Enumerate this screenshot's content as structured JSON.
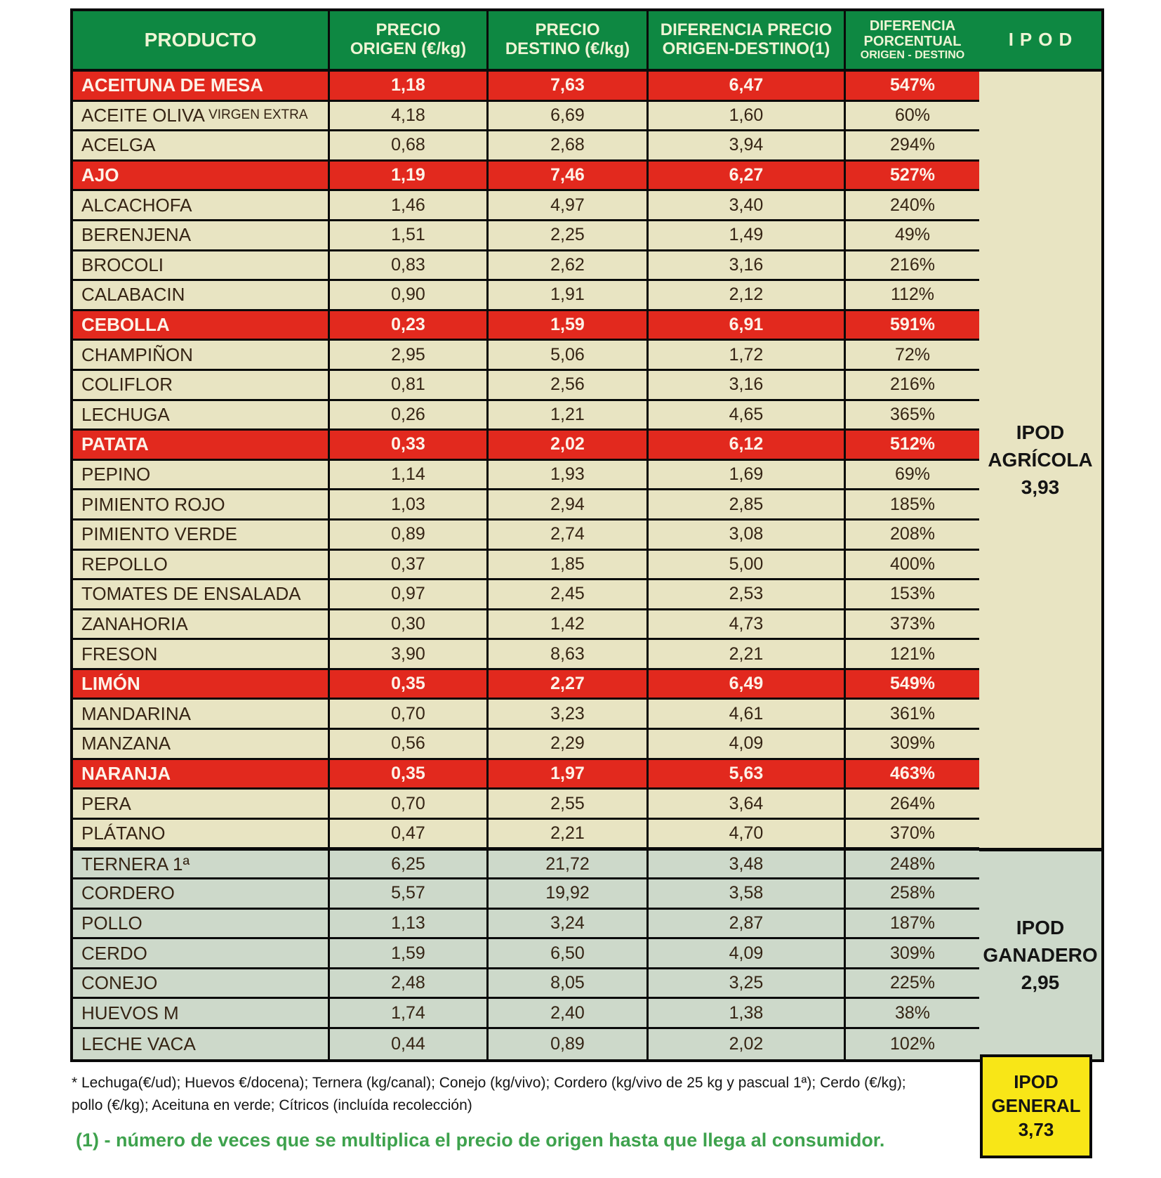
{
  "header": {
    "producto": "PRODUCTO",
    "precio_origen": [
      "PRECIO",
      "ORIGEN (€/kg)"
    ],
    "precio_destino": [
      "PRECIO",
      "DESTINO (€/kg)"
    ],
    "diferencia_precio": [
      "DIFERENCIA PRECIO",
      "ORIGEN-DESTINO(1)"
    ],
    "diferencia_porcentual": [
      "DIFERENCIA",
      "PORCENTUAL",
      "ORIGEN - DESTINO"
    ],
    "ipod": "IPOD"
  },
  "rows": [
    {
      "name": "ACEITUNA DE MESA",
      "origen": "1,18",
      "destino": "7,63",
      "diferencia": "6,47",
      "porcentaje": "547%",
      "highlight": true,
      "section": "agricola"
    },
    {
      "name": "ACEITE OLIVA",
      "name_small": "VIRGEN EXTRA",
      "origen": "4,18",
      "destino": "6,69",
      "diferencia": "1,60",
      "porcentaje": "60%",
      "highlight": false,
      "section": "agricola"
    },
    {
      "name": "ACELGA",
      "origen": "0,68",
      "destino": "2,68",
      "diferencia": "3,94",
      "porcentaje": "294%",
      "highlight": false,
      "section": "agricola"
    },
    {
      "name": "AJO",
      "origen": "1,19",
      "destino": "7,46",
      "diferencia": "6,27",
      "porcentaje": "527%",
      "highlight": true,
      "section": "agricola"
    },
    {
      "name": "ALCACHOFA",
      "origen": "1,46",
      "destino": "4,97",
      "diferencia": "3,40",
      "porcentaje": "240%",
      "highlight": false,
      "section": "agricola"
    },
    {
      "name": "BERENJENA",
      "origen": "1,51",
      "destino": "2,25",
      "diferencia": "1,49",
      "porcentaje": "49%",
      "highlight": false,
      "section": "agricola"
    },
    {
      "name": "BROCOLI",
      "origen": "0,83",
      "destino": "2,62",
      "diferencia": "3,16",
      "porcentaje": "216%",
      "highlight": false,
      "section": "agricola"
    },
    {
      "name": "CALABACIN",
      "origen": "0,90",
      "destino": "1,91",
      "diferencia": "2,12",
      "porcentaje": "112%",
      "highlight": false,
      "section": "agricola"
    },
    {
      "name": "CEBOLLA",
      "origen": "0,23",
      "destino": "1,59",
      "diferencia": "6,91",
      "porcentaje": "591%",
      "highlight": true,
      "section": "agricola"
    },
    {
      "name": "CHAMPIÑON",
      "origen": "2,95",
      "destino": "5,06",
      "diferencia": "1,72",
      "porcentaje": "72%",
      "highlight": false,
      "section": "agricola"
    },
    {
      "name": "COLIFLOR",
      "origen": "0,81",
      "destino": "2,56",
      "diferencia": "3,16",
      "porcentaje": "216%",
      "highlight": false,
      "section": "agricola"
    },
    {
      "name": "LECHUGA",
      "origen": "0,26",
      "destino": "1,21",
      "diferencia": "4,65",
      "porcentaje": "365%",
      "highlight": false,
      "section": "agricola"
    },
    {
      "name": "PATATA",
      "origen": "0,33",
      "destino": "2,02",
      "diferencia": "6,12",
      "porcentaje": "512%",
      "highlight": true,
      "section": "agricola"
    },
    {
      "name": "PEPINO",
      "origen": "1,14",
      "destino": "1,93",
      "diferencia": "1,69",
      "porcentaje": "69%",
      "highlight": false,
      "section": "agricola"
    },
    {
      "name": "PIMIENTO ROJO",
      "origen": "1,03",
      "destino": "2,94",
      "diferencia": "2,85",
      "porcentaje": "185%",
      "highlight": false,
      "section": "agricola"
    },
    {
      "name": "PIMIENTO VERDE",
      "origen": "0,89",
      "destino": "2,74",
      "diferencia": "3,08",
      "porcentaje": "208%",
      "highlight": false,
      "section": "agricola"
    },
    {
      "name": "REPOLLO",
      "origen": "0,37",
      "destino": "1,85",
      "diferencia": "5,00",
      "porcentaje": "400%",
      "highlight": false,
      "section": "agricola"
    },
    {
      "name": "TOMATES DE ENSALADA",
      "origen": "0,97",
      "destino": "2,45",
      "diferencia": "2,53",
      "porcentaje": "153%",
      "highlight": false,
      "section": "agricola"
    },
    {
      "name": "ZANAHORIA",
      "origen": "0,30",
      "destino": "1,42",
      "diferencia": "4,73",
      "porcentaje": "373%",
      "highlight": false,
      "section": "agricola"
    },
    {
      "name": "FRESON",
      "origen": "3,90",
      "destino": "8,63",
      "diferencia": "2,21",
      "porcentaje": "121%",
      "highlight": false,
      "section": "agricola"
    },
    {
      "name": "LIMÓN",
      "origen": "0,35",
      "destino": "2,27",
      "diferencia": "6,49",
      "porcentaje": "549%",
      "highlight": true,
      "section": "agricola"
    },
    {
      "name": "MANDARINA",
      "origen": "0,70",
      "destino": "3,23",
      "diferencia": "4,61",
      "porcentaje": "361%",
      "highlight": false,
      "section": "agricola"
    },
    {
      "name": "MANZANA",
      "origen": "0,56",
      "destino": "2,29",
      "diferencia": "4,09",
      "porcentaje": "309%",
      "highlight": false,
      "section": "agricola"
    },
    {
      "name": "NARANJA",
      "origen": "0,35",
      "destino": "1,97",
      "diferencia": "5,63",
      "porcentaje": "463%",
      "highlight": true,
      "section": "agricola"
    },
    {
      "name": "PERA",
      "origen": "0,70",
      "destino": "2,55",
      "diferencia": "3,64",
      "porcentaje": "264%",
      "highlight": false,
      "section": "agricola"
    },
    {
      "name": "PLÁTANO",
      "origen": "0,47",
      "destino": "2,21",
      "diferencia": "4,70",
      "porcentaje": "370%",
      "highlight": false,
      "section": "agricola"
    },
    {
      "name": "TERNERA 1ª",
      "origen": "6,25",
      "destino": "21,72",
      "diferencia": "3,48",
      "porcentaje": "248%",
      "highlight": false,
      "section": "ganadero"
    },
    {
      "name": "CORDERO",
      "origen": "5,57",
      "destino": "19,92",
      "diferencia": "3,58",
      "porcentaje": "258%",
      "highlight": false,
      "section": "ganadero"
    },
    {
      "name": "POLLO",
      "origen": "1,13",
      "destino": "3,24",
      "diferencia": "2,87",
      "porcentaje": "187%",
      "highlight": false,
      "section": "ganadero"
    },
    {
      "name": "CERDO",
      "origen": "1,59",
      "destino": "6,50",
      "diferencia": "4,09",
      "porcentaje": "309%",
      "highlight": false,
      "section": "ganadero"
    },
    {
      "name": "CONEJO",
      "origen": "2,48",
      "destino": "8,05",
      "diferencia": "3,25",
      "porcentaje": "225%",
      "highlight": false,
      "section": "ganadero"
    },
    {
      "name": "HUEVOS M",
      "origen": "1,74",
      "destino": "2,40",
      "diferencia": "1,38",
      "porcentaje": "38%",
      "highlight": false,
      "section": "ganadero"
    },
    {
      "name": "LECHE VACA",
      "origen": "0,44",
      "destino": "0,89",
      "diferencia": "2,02",
      "porcentaje": "102%",
      "highlight": false,
      "section": "ganadero"
    }
  ],
  "ipod_agricola": {
    "label1": "IPOD",
    "label2": "AGRÍCOLA",
    "value": "3,93"
  },
  "ipod_ganadero": {
    "label1": "IPOD",
    "label2": "GANADERO",
    "value": "2,95"
  },
  "ipod_general": {
    "label1": "IPOD",
    "label2": "GENERAL",
    "value": "3,73"
  },
  "footnotes": {
    "asterisk_line1": "* Lechuga(€/ud);  Huevos €/docena); Ternera (kg/canal); Conejo (kg/vivo); Cordero (kg/vivo de 25 kg y pascual 1ª); Cerdo (€/kg);",
    "asterisk_line2": "pollo (€/kg); Aceituna en verde; Cítricos (incluída recolección)",
    "green_note": "(1) - número de veces que se multiplica el precio de origen hasta que llega al consumidor."
  },
  "colors": {
    "header_green": "#0e8842",
    "header_text": "#eef4d4",
    "row_beige": "#e8e4c2",
    "highlight_red": "#e2291e",
    "ganadero_sage": "#cdd9ca",
    "general_yellow": "#f8e617",
    "note_green": "#3ea24d",
    "border_black": "#0a0a0a"
  }
}
